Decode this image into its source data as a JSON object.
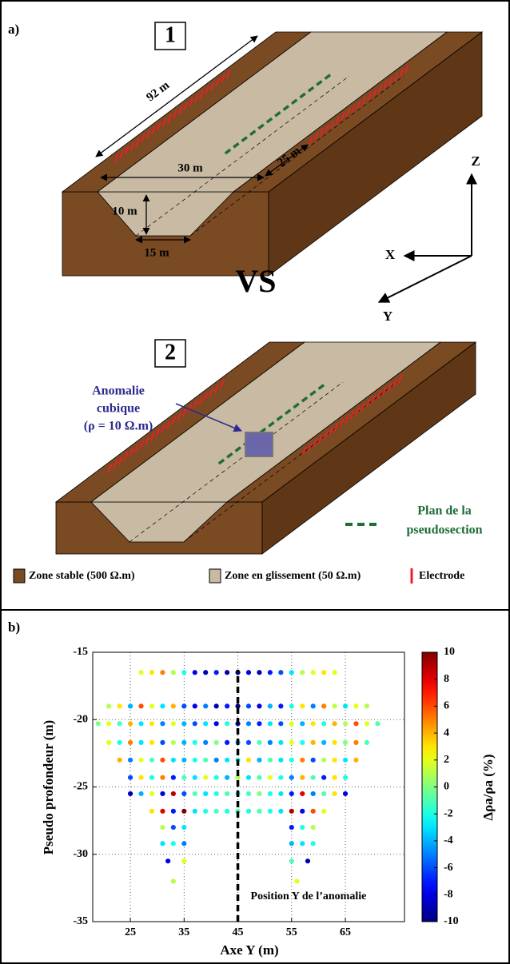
{
  "panel_a": {
    "label": "a)",
    "block_1": "1",
    "block_2": "2",
    "vs": "VS",
    "dimensions": [
      "92 m",
      "30 m",
      "25 m",
      "10 m",
      "15 m"
    ],
    "axes": [
      "Z",
      "X",
      "Y"
    ],
    "anomaly": [
      "Anomalie",
      "cubique",
      "(ρ = 10 Ω.m)"
    ],
    "plane": [
      "Plan de la",
      "pseudosection"
    ],
    "legend": [
      "Zone stable (500 Ω.m)",
      "Zone en glissement (50 Ω.m)",
      "Electrode"
    ]
  },
  "chart_data": {
    "type": "scatter",
    "panel_label": "b)",
    "x_label": "Axe Y (m)",
    "y_label": "Pseudo profondeur (m)",
    "colorbar_label": "Δρa/ρa (%)",
    "xlim": [
      18,
      76
    ],
    "ylim": [
      -35,
      -15
    ],
    "xticks": [
      25,
      35,
      45,
      55,
      65
    ],
    "yticks": [
      -35,
      -30,
      -25,
      -20,
      -15
    ],
    "zlim": [
      -10,
      10
    ],
    "zticks": [
      -10,
      -8,
      -6,
      -4,
      -2,
      0,
      2,
      4,
      6,
      8,
      10
    ],
    "colormap": "jet",
    "grid": true,
    "anomaly_line": {
      "x": 45,
      "y": [
        -35,
        -16.3
      ],
      "label": "Position Y de l’anomalie"
    },
    "x": [
      27,
      29,
      31,
      33,
      35,
      37,
      39,
      41,
      43,
      45,
      47,
      49,
      51,
      53,
      55,
      57,
      59,
      61,
      63,
      21,
      23,
      25,
      27,
      29,
      31,
      33,
      35,
      37,
      39,
      41,
      43,
      45,
      47,
      49,
      51,
      53,
      55,
      57,
      59,
      61,
      63,
      65,
      67,
      69,
      19,
      21,
      23,
      25,
      27,
      29,
      31,
      33,
      35,
      37,
      39,
      41,
      43,
      45,
      47,
      49,
      51,
      53,
      55,
      57,
      59,
      61,
      63,
      65,
      67,
      69,
      71,
      21,
      23,
      25,
      27,
      29,
      31,
      33,
      35,
      37,
      39,
      41,
      43,
      45,
      47,
      49,
      51,
      53,
      55,
      57,
      59,
      61,
      63,
      65,
      67,
      69,
      23,
      25,
      27,
      29,
      31,
      33,
      35,
      37,
      39,
      41,
      43,
      45,
      47,
      49,
      51,
      53,
      55,
      57,
      59,
      61,
      63,
      65,
      67,
      25,
      27,
      29,
      31,
      33,
      35,
      37,
      39,
      41,
      43,
      45,
      47,
      49,
      51,
      53,
      55,
      57,
      59,
      61,
      63,
      65,
      25,
      27,
      29,
      31,
      33,
      35,
      37,
      39,
      41,
      43,
      45,
      47,
      49,
      51,
      53,
      55,
      57,
      59,
      61,
      63,
      65,
      29,
      31,
      33,
      35,
      37,
      39,
      41,
      43,
      45,
      47,
      49,
      51,
      53,
      55,
      57,
      59,
      61,
      31,
      33,
      35,
      55,
      57,
      59,
      31,
      33,
      35,
      55,
      57,
      59,
      32,
      35,
      55,
      58,
      33,
      56
    ],
    "y": [
      -16.5,
      -16.5,
      -16.5,
      -16.5,
      -16.5,
      -16.5,
      -16.5,
      -16.5,
      -16.5,
      -16.5,
      -16.5,
      -16.5,
      -16.5,
      -16.5,
      -16.5,
      -16.5,
      -16.5,
      -16.5,
      -16.5,
      -19,
      -19,
      -19,
      -19,
      -19,
      -19,
      -19,
      -19,
      -19,
      -19,
      -19,
      -19,
      -19,
      -19,
      -19,
      -19,
      -19,
      -19,
      -19,
      -19,
      -19,
      -19,
      -19,
      -19,
      -19,
      -20.3,
      -20.3,
      -20.3,
      -20.3,
      -20.3,
      -20.3,
      -20.3,
      -20.3,
      -20.3,
      -20.3,
      -20.3,
      -20.3,
      -20.3,
      -20.3,
      -20.3,
      -20.3,
      -20.3,
      -20.3,
      -20.3,
      -20.3,
      -20.3,
      -20.3,
      -20.3,
      -20.3,
      -20.3,
      -20.3,
      -20.3,
      -21.7,
      -21.7,
      -21.7,
      -21.7,
      -21.7,
      -21.7,
      -21.7,
      -21.7,
      -21.7,
      -21.7,
      -21.7,
      -21.7,
      -21.7,
      -21.7,
      -21.7,
      -21.7,
      -21.7,
      -21.7,
      -21.7,
      -21.7,
      -21.7,
      -21.7,
      -21.7,
      -21.7,
      -21.7,
      -23,
      -23,
      -23,
      -23,
      -23,
      -23,
      -23,
      -23,
      -23,
      -23,
      -23,
      -23,
      -23,
      -23,
      -23,
      -23,
      -23,
      -23,
      -23,
      -23,
      -23,
      -23,
      -23,
      -24.3,
      -24.3,
      -24.3,
      -24.3,
      -24.3,
      -24.3,
      -24.3,
      -24.3,
      -24.3,
      -24.3,
      -24.3,
      -24.3,
      -24.3,
      -24.3,
      -24.3,
      -24.3,
      -24.3,
      -24.3,
      -24.3,
      -24.3,
      -24.3,
      -25.5,
      -25.5,
      -25.5,
      -25.5,
      -25.5,
      -25.5,
      -25.5,
      -25.5,
      -25.5,
      -25.5,
      -25.5,
      -25.5,
      -25.5,
      -25.5,
      -25.5,
      -25.5,
      -25.5,
      -25.5,
      -25.5,
      -25.5,
      -25.5,
      -26.8,
      -26.8,
      -26.8,
      -26.8,
      -26.8,
      -26.8,
      -26.8,
      -26.8,
      -26.8,
      -26.8,
      -26.8,
      -26.8,
      -26.8,
      -26.8,
      -26.8,
      -26.8,
      -26.8,
      -28,
      -28,
      -28,
      -28,
      -28,
      -28,
      -29.2,
      -29.2,
      -29.2,
      -29.2,
      -29.2,
      -29.2,
      -30.5,
      -30.5,
      -30.5,
      -30.5,
      -32,
      -32
    ],
    "values": [
      2,
      3,
      5,
      1,
      -2,
      -8,
      -9,
      -7,
      -9,
      -10,
      -8,
      -9,
      -7,
      -6,
      -3,
      1,
      2,
      3,
      2,
      1,
      3,
      -4,
      6,
      2,
      -3,
      4,
      -6,
      -8,
      -5,
      -9,
      -7,
      -10,
      -6,
      -8,
      -4,
      -7,
      -2,
      3,
      -5,
      5,
      1,
      -3,
      2,
      1,
      0,
      2,
      -1,
      4,
      -3,
      3,
      -5,
      2,
      -4,
      -6,
      -3,
      -8,
      -2,
      -9,
      -5,
      -7,
      -3,
      -6,
      2,
      -4,
      3,
      -2,
      4,
      1,
      6,
      2,
      -1,
      2,
      -2,
      5,
      -3,
      3,
      -6,
      1,
      -4,
      -2,
      -5,
      0,
      -7,
      -4,
      -6,
      -1,
      -5,
      -3,
      2,
      -2,
      4,
      -4,
      3,
      0,
      5,
      -1,
      4,
      -5,
      2,
      -1,
      6,
      -3,
      -4,
      -2,
      -1,
      -5,
      -3,
      -2,
      3,
      -4,
      -1,
      -3,
      -2,
      5,
      -6,
      1,
      3,
      -3,
      4,
      -6,
      3,
      -2,
      5,
      -7,
      -1,
      -3,
      2,
      -2,
      -4,
      1,
      -3,
      -1,
      2,
      -2,
      -5,
      4,
      -1,
      -7,
      3,
      -2,
      -9,
      -4,
      2,
      -8,
      9,
      -6,
      -1,
      -3,
      -2,
      -1,
      -2,
      -1,
      0,
      -2,
      -3,
      -7,
      8,
      -5,
      -1,
      3,
      -8,
      3,
      8,
      -7,
      10,
      -3,
      -2,
      -1,
      -2,
      -1,
      -2,
      -1,
      -2,
      -3,
      9,
      -8,
      6,
      2,
      1,
      -6,
      -3,
      -7,
      -2,
      1,
      -3,
      -2,
      -5,
      -4,
      -3,
      -2,
      -8,
      2,
      -1,
      -9,
      1,
      2
    ]
  }
}
